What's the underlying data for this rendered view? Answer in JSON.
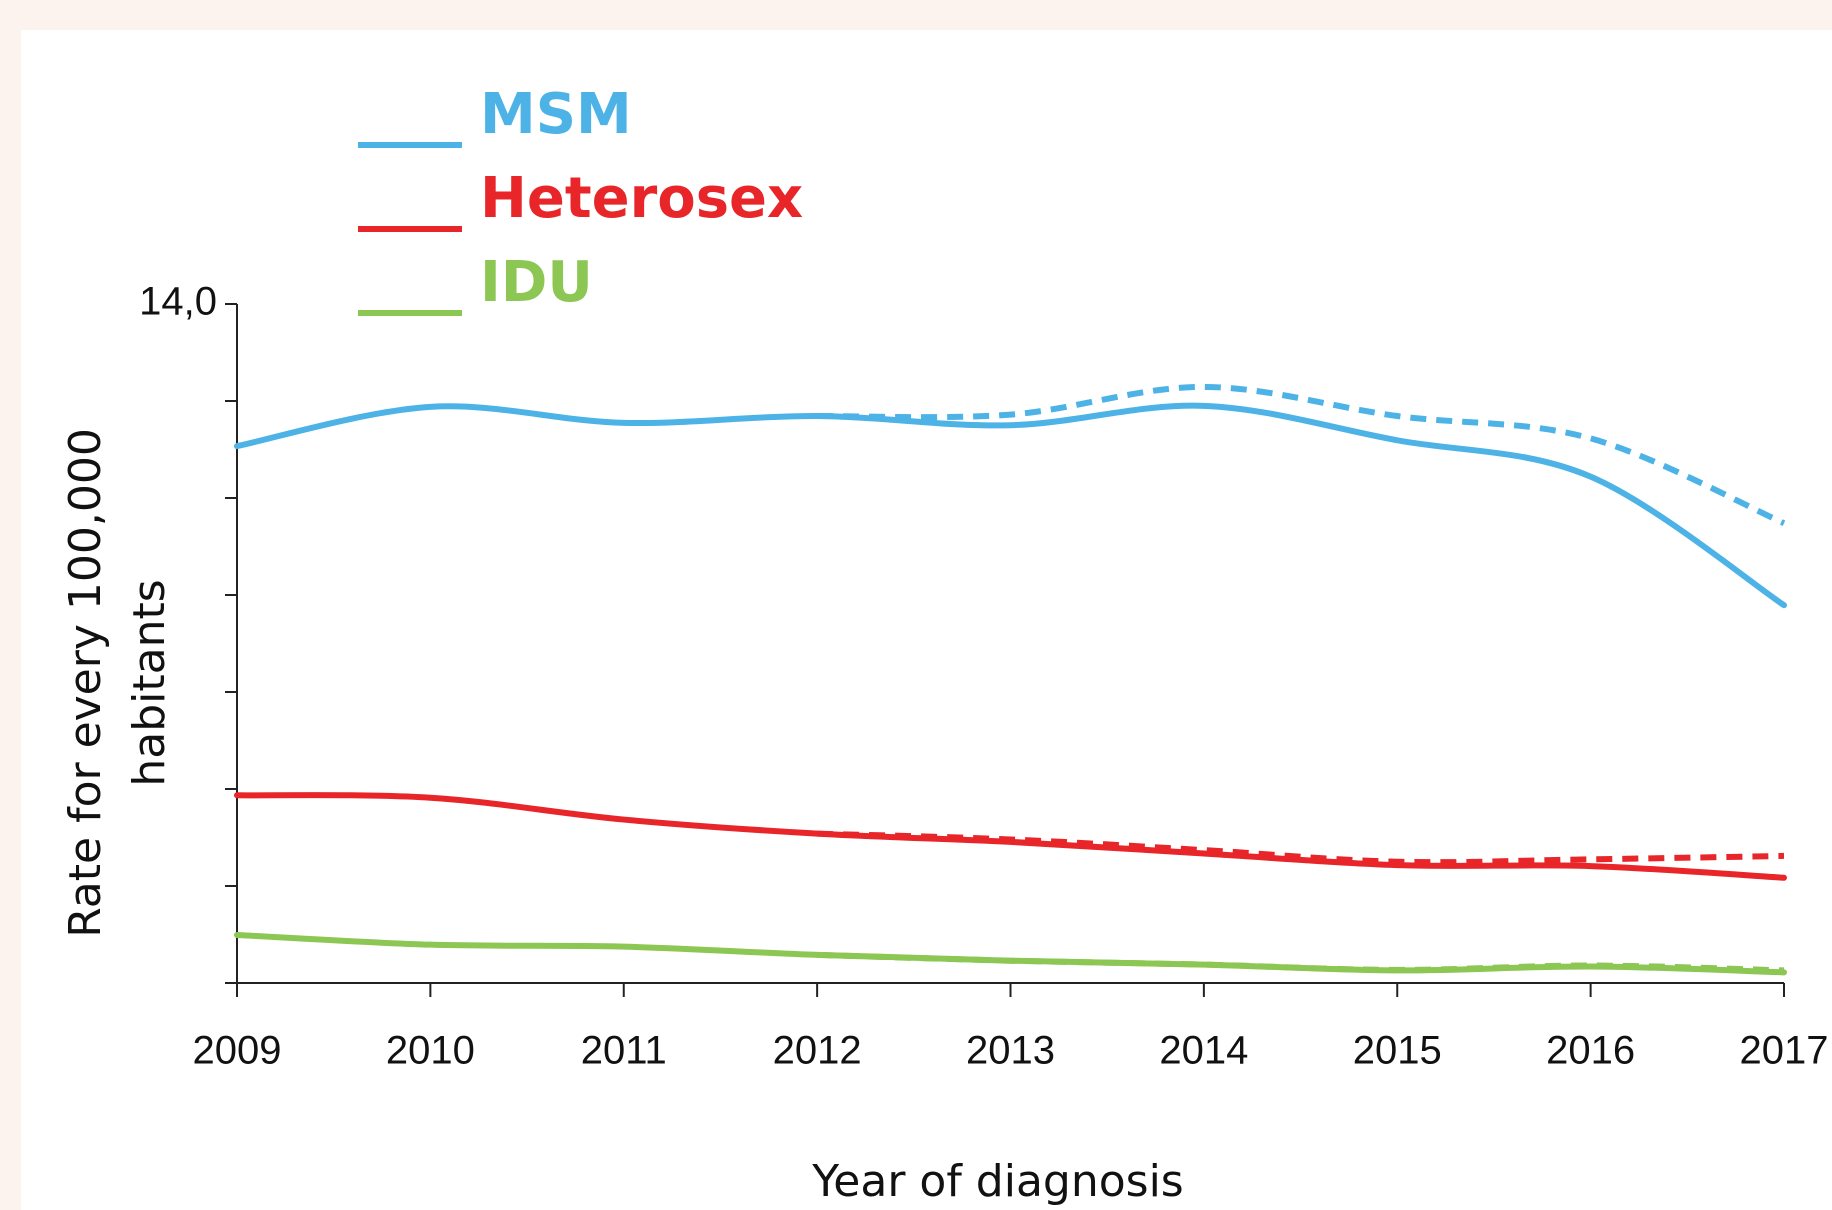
{
  "chart_data": {
    "type": "line",
    "xlabel": "Year of diagnosis",
    "ylabel": [
      "Rate for every 100,000",
      "habitants"
    ],
    "x": [
      2009,
      2010,
      2011,
      2012,
      2013,
      2014,
      2015,
      2016,
      2017
    ],
    "xlim": [
      2009,
      2017
    ],
    "xticks": [
      2009,
      2010,
      2011,
      2012,
      2013,
      2014,
      2015,
      2016,
      2017
    ],
    "ylim": [
      0,
      14
    ],
    "yticks": [
      {
        "value": 0,
        "label": null
      },
      {
        "value": 2,
        "label": null
      },
      {
        "value": 4,
        "label": null
      },
      {
        "value": 6,
        "label": null
      },
      {
        "value": 8,
        "label": null
      },
      {
        "value": 10,
        "label": null
      },
      {
        "value": 12,
        "label": null
      },
      {
        "value": 14,
        "label": "14,0"
      }
    ],
    "series": [
      {
        "name": "MSM",
        "color": "#4db3e6",
        "values": [
          11.07,
          11.88,
          11.55,
          11.69,
          11.5,
          11.9,
          11.19,
          10.44,
          7.79
        ]
      },
      {
        "name": "Heterosex",
        "color": "#e8262a",
        "values": [
          3.87,
          3.82,
          3.37,
          3.08,
          2.91,
          2.67,
          2.43,
          2.41,
          2.17
        ]
      },
      {
        "name": "IDU",
        "color": "#8cc653",
        "values": [
          0.99,
          0.79,
          0.75,
          0.58,
          0.46,
          0.38,
          0.26,
          0.34,
          0.22
        ]
      },
      {
        "color": "#4db3e6",
        "dashed": true,
        "values": [
          null,
          null,
          null,
          11.69,
          11.72,
          12.29,
          11.69,
          11.23,
          9.48
        ]
      },
      {
        "color": "#e8262a",
        "dashed": true,
        "values": [
          null,
          null,
          null,
          3.08,
          2.96,
          2.74,
          2.5,
          2.55,
          2.62
        ]
      },
      {
        "color": "#8cc653",
        "dashed": true,
        "values": [
          null,
          null,
          null,
          0.58,
          0.46,
          0.38,
          0.27,
          0.36,
          0.26
        ]
      }
    ]
  }
}
